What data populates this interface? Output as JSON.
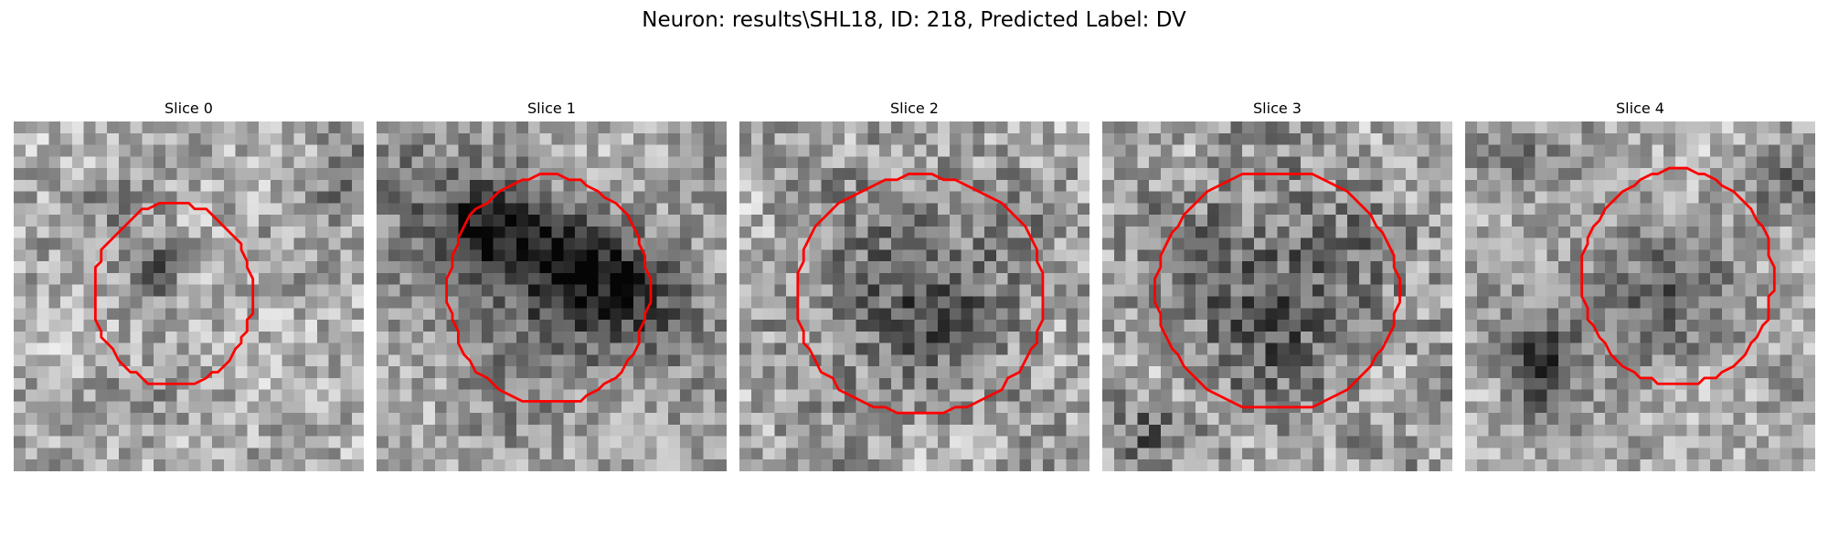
{
  "figure": {
    "title": "Neuron: results\\SHL18, ID: 218, Predicted Label: DV"
  },
  "colors": {
    "contour": "#ff0000",
    "background": "#ffffff"
  },
  "panels": [
    {
      "title": "Slice 0"
    },
    {
      "title": "Slice 1"
    },
    {
      "title": "Slice 2"
    },
    {
      "title": "Slice 3"
    },
    {
      "title": "Slice 4"
    }
  ]
}
